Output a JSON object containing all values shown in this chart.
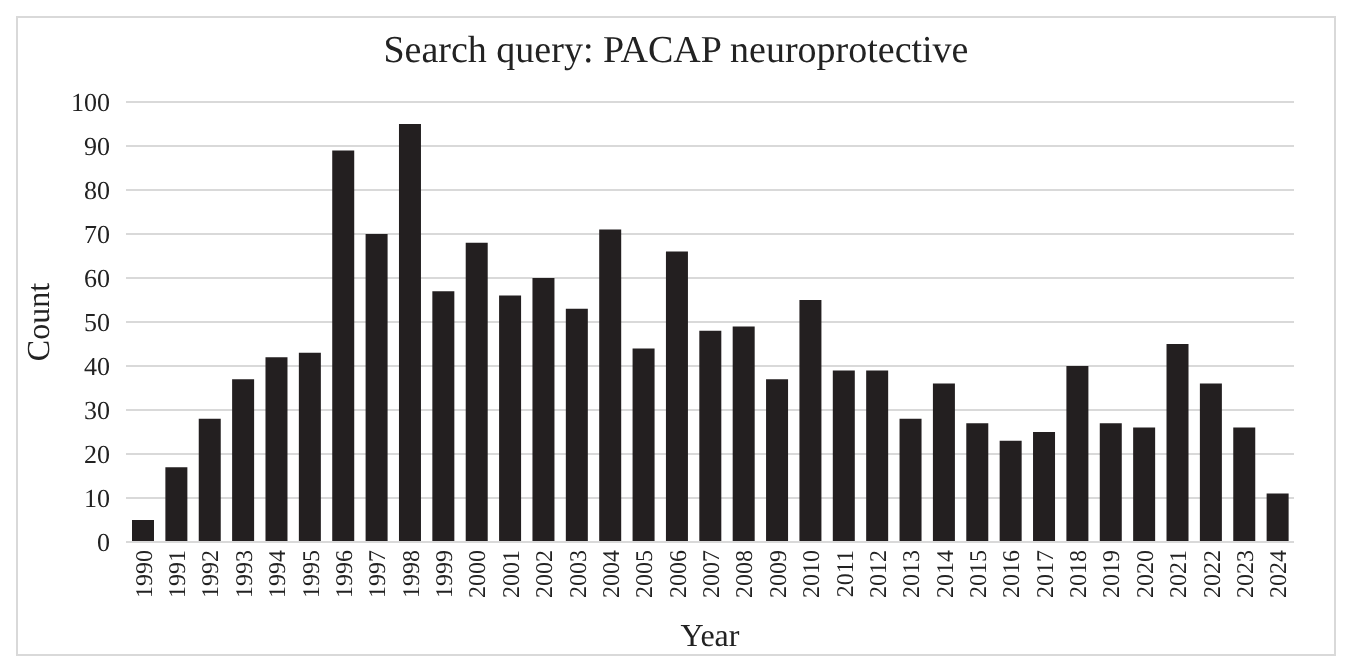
{
  "chart_data": {
    "type": "bar",
    "title": "Search query: PACAP neuroprotective",
    "xlabel": "Year",
    "ylabel": "Count",
    "categories": [
      "1990",
      "1991",
      "1992",
      "1993",
      "1994",
      "1995",
      "1996",
      "1997",
      "1998",
      "1999",
      "2000",
      "2001",
      "2002",
      "2003",
      "2004",
      "2005",
      "2006",
      "2007",
      "2008",
      "2009",
      "2010",
      "2011",
      "2012",
      "2013",
      "2014",
      "2015",
      "2016",
      "2017",
      "2018",
      "2019",
      "2020",
      "2021",
      "2022",
      "2023",
      "2024"
    ],
    "values": [
      5,
      17,
      28,
      37,
      42,
      43,
      89,
      70,
      95,
      57,
      68,
      56,
      60,
      53,
      71,
      44,
      66,
      48,
      49,
      37,
      55,
      39,
      39,
      28,
      36,
      27,
      23,
      25,
      40,
      27,
      26,
      45,
      36,
      26,
      11
    ],
    "color": "#231f20",
    "ylim": [
      0,
      100
    ],
    "yticks": [
      0,
      10,
      20,
      30,
      40,
      50,
      60,
      70,
      80,
      90,
      100
    ],
    "grid": "y"
  }
}
